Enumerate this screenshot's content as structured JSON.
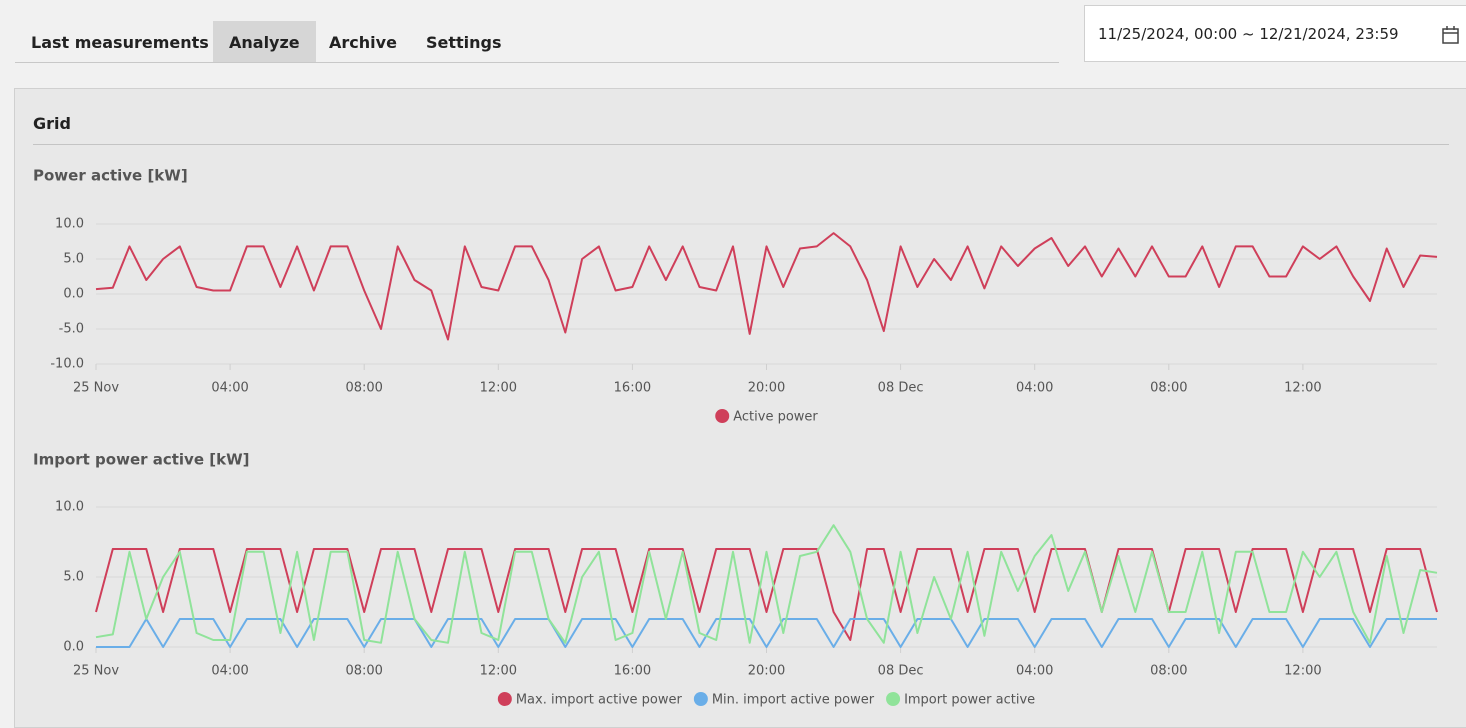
{
  "tabs": [
    "Last measurements",
    "Analyze",
    "Archive",
    "Settings"
  ],
  "date_range": "11/25/2024, 00:00 ~ 12/21/2024, 23:59",
  "section": "Grid",
  "chart_data": [
    {
      "type": "line",
      "title": "Power active [kW]",
      "x": [
        0,
        0.5,
        1,
        1.5,
        2,
        2.5,
        3,
        3.5,
        4,
        4.5,
        5,
        5.5,
        6,
        6.5,
        7,
        7.5,
        8,
        8.5,
        9,
        9.5,
        10,
        10.5,
        11,
        11.5,
        12,
        12.5,
        13,
        13.5,
        14,
        14.5,
        15,
        15.5,
        16,
        16.5,
        17,
        17.5,
        18,
        18.5,
        19,
        19.5,
        20,
        20.5,
        21,
        21.5,
        22,
        22.5,
        23,
        23.5,
        24,
        24.5,
        25,
        25.5,
        26,
        26.5,
        27,
        27.5,
        28,
        28.5,
        29,
        29.5,
        30,
        30.5,
        31,
        31.5,
        32,
        32.5,
        33,
        33.5,
        34,
        34.5,
        35,
        35.5,
        36,
        36.5,
        37,
        37.5,
        38,
        38.5,
        39,
        39.5,
        40
      ],
      "xlim": [
        0,
        40
      ],
      "xticks": [
        {
          "value": 0,
          "label": "25 Nov"
        },
        {
          "value": 4,
          "label": "04:00"
        },
        {
          "value": 8,
          "label": "08:00"
        },
        {
          "value": 12,
          "label": "12:00"
        },
        {
          "value": 16,
          "label": "16:00"
        },
        {
          "value": 20,
          "label": "20:00"
        },
        {
          "value": 24,
          "label": "08 Dec"
        },
        {
          "value": 28,
          "label": "04:00"
        },
        {
          "value": 32,
          "label": "08:00"
        },
        {
          "value": 36,
          "label": "12:00"
        }
      ],
      "ylim": [
        -10,
        10
      ],
      "yticks": [
        {
          "value": -10,
          "label": "-10.0"
        },
        {
          "value": -5,
          "label": "-5.0"
        },
        {
          "value": 0,
          "label": "0.0"
        },
        {
          "value": 5,
          "label": "5.0"
        },
        {
          "value": 10,
          "label": "10.0"
        }
      ],
      "grid": true,
      "series": [
        {
          "name": "Active power",
          "color": "#cf3f5a",
          "values": [
            0.7,
            0.9,
            6.8,
            2,
            5,
            6.8,
            1,
            0.5,
            0.5,
            6.8,
            6.8,
            1,
            6.8,
            0.5,
            6.8,
            6.8,
            0.5,
            -5,
            6.8,
            2,
            0.5,
            -6.5,
            6.8,
            1,
            0.5,
            6.8,
            6.8,
            2,
            -5.5,
            5,
            6.8,
            0.5,
            1,
            6.8,
            2,
            6.8,
            1,
            0.5,
            6.8,
            -5.7,
            6.8,
            1,
            6.5,
            6.8,
            8.7,
            6.8,
            2,
            -5.3,
            6.8,
            1,
            5,
            2,
            6.8,
            0.8,
            6.8,
            4,
            6.5,
            8,
            4,
            6.8,
            2.5,
            6.5,
            2.5,
            6.8,
            2.5,
            2.5,
            6.8,
            1,
            6.8,
            6.8,
            2.5,
            2.5,
            6.8,
            5,
            6.8,
            2.5,
            -1,
            6.5,
            1,
            5.5,
            5.3
          ]
        }
      ]
    },
    {
      "type": "line",
      "title": "Import power active [kW]",
      "x": [
        0,
        0.5,
        1,
        1.5,
        2,
        2.5,
        3,
        3.5,
        4,
        4.5,
        5,
        5.5,
        6,
        6.5,
        7,
        7.5,
        8,
        8.5,
        9,
        9.5,
        10,
        10.5,
        11,
        11.5,
        12,
        12.5,
        13,
        13.5,
        14,
        14.5,
        15,
        15.5,
        16,
        16.5,
        17,
        17.5,
        18,
        18.5,
        19,
        19.5,
        20,
        20.5,
        21,
        21.5,
        22,
        22.5,
        23,
        23.5,
        24,
        24.5,
        25,
        25.5,
        26,
        26.5,
        27,
        27.5,
        28,
        28.5,
        29,
        29.5,
        30,
        30.5,
        31,
        31.5,
        32,
        32.5,
        33,
        33.5,
        34,
        34.5,
        35,
        35.5,
        36,
        36.5,
        37,
        37.5,
        38,
        38.5,
        39,
        39.5,
        40
      ],
      "xlim": [
        0,
        40
      ],
      "xticks": [
        {
          "value": 0,
          "label": "25 Nov"
        },
        {
          "value": 4,
          "label": "04:00"
        },
        {
          "value": 8,
          "label": "08:00"
        },
        {
          "value": 12,
          "label": "12:00"
        },
        {
          "value": 16,
          "label": "16:00"
        },
        {
          "value": 20,
          "label": "20:00"
        },
        {
          "value": 24,
          "label": "08 Dec"
        },
        {
          "value": 28,
          "label": "04:00"
        },
        {
          "value": 32,
          "label": "08:00"
        },
        {
          "value": 36,
          "label": "12:00"
        }
      ],
      "ylim": [
        0,
        10
      ],
      "yticks": [
        {
          "value": 0,
          "label": "0.0"
        },
        {
          "value": 5,
          "label": "5.0"
        },
        {
          "value": 10,
          "label": "10.0"
        }
      ],
      "grid": true,
      "series": [
        {
          "name": "Max. import active power",
          "color": "#cf3f5a",
          "values": [
            2.5,
            7,
            7,
            7,
            2.5,
            7,
            7,
            7,
            2.5,
            7,
            7,
            7,
            2.5,
            7,
            7,
            7,
            2.5,
            7,
            7,
            7,
            2.5,
            7,
            7,
            7,
            2.5,
            7,
            7,
            7,
            2.5,
            7,
            7,
            7,
            2.5,
            7,
            7,
            7,
            2.5,
            7,
            7,
            7,
            2.5,
            7,
            7,
            7,
            2.5,
            0.5,
            7,
            7,
            2.5,
            7,
            7,
            7,
            2.5,
            7,
            7,
            7,
            2.5,
            7,
            7,
            7,
            2.5,
            7,
            7,
            7,
            2.5,
            7,
            7,
            7,
            2.5,
            7,
            7,
            7,
            2.5,
            7,
            7,
            7,
            2.5,
            7,
            7,
            7,
            2.5
          ]
        },
        {
          "name": "Min. import active power",
          "color": "#6aaee8",
          "values": [
            0,
            0,
            0,
            2,
            0,
            2,
            2,
            2,
            0,
            2,
            2,
            2,
            0,
            2,
            2,
            2,
            0,
            2,
            2,
            2,
            0,
            2,
            2,
            2,
            0,
            2,
            2,
            2,
            0,
            2,
            2,
            2,
            0,
            2,
            2,
            2,
            0,
            2,
            2,
            2,
            0,
            2,
            2,
            2,
            0,
            2,
            2,
            2,
            0,
            2,
            2,
            2,
            0,
            2,
            2,
            2,
            0,
            2,
            2,
            2,
            0,
            2,
            2,
            2,
            0,
            2,
            2,
            2,
            0,
            2,
            2,
            2,
            0,
            2,
            2,
            2,
            0,
            2,
            2,
            2,
            2
          ]
        },
        {
          "name": "Import power active",
          "color": "#90e39a",
          "values": [
            0.7,
            0.9,
            6.8,
            2,
            5,
            6.8,
            1,
            0.5,
            0.5,
            6.8,
            6.8,
            1,
            6.8,
            0.5,
            6.8,
            6.8,
            0.5,
            0.3,
            6.8,
            2,
            0.5,
            0.3,
            6.8,
            1,
            0.5,
            6.8,
            6.8,
            2,
            0.3,
            5,
            6.8,
            0.5,
            1,
            6.8,
            2,
            6.8,
            1,
            0.5,
            6.8,
            0.3,
            6.8,
            1,
            6.5,
            6.8,
            8.7,
            6.8,
            2,
            0.3,
            6.8,
            1,
            5,
            2,
            6.8,
            0.8,
            6.8,
            4,
            6.5,
            8,
            4,
            6.8,
            2.5,
            6.5,
            2.5,
            6.8,
            2.5,
            2.5,
            6.8,
            1,
            6.8,
            6.8,
            2.5,
            2.5,
            6.8,
            5,
            6.8,
            2.5,
            0.3,
            6.5,
            1,
            5.5,
            5.3
          ]
        }
      ]
    }
  ]
}
